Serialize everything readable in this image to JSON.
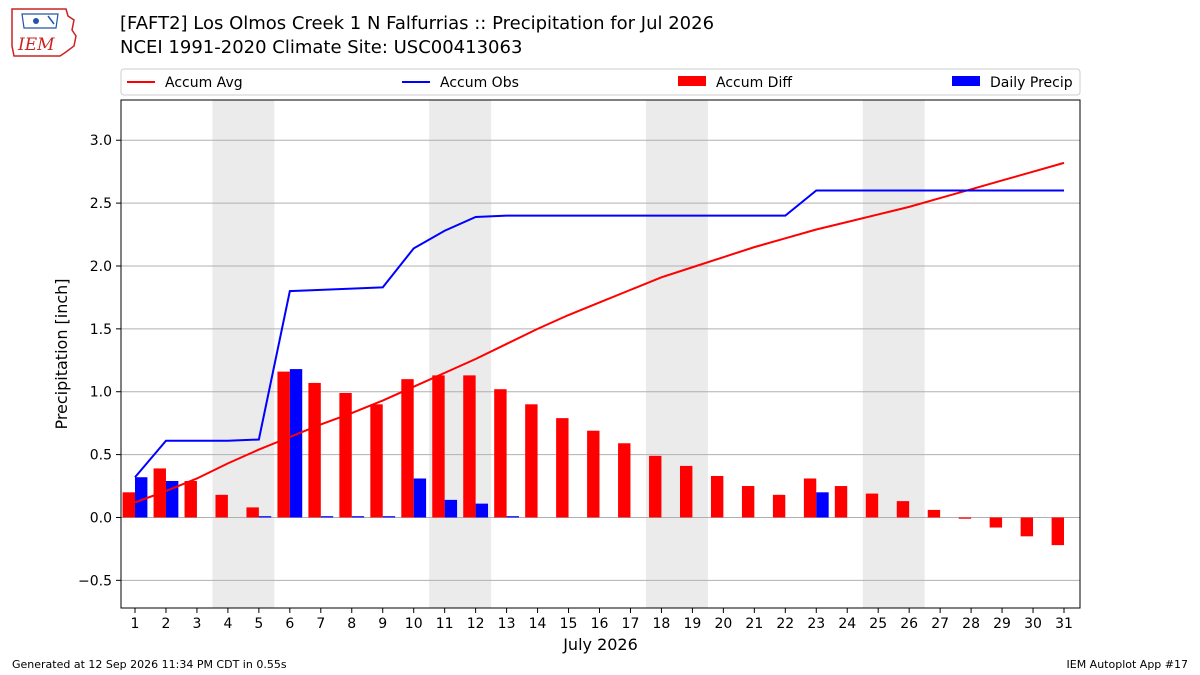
{
  "header": {
    "title_line1": "[FAFT2] Los Olmos Creek 1 N Falfurrias :: Precipitation for Jul 2026",
    "title_line2": "NCEI 1991-2020 Climate Site: USC00413063",
    "logo_text": "IEM"
  },
  "footer": {
    "left": "Generated at 12 Sep 2026 11:34 PM CDT in 0.55s",
    "right": "IEM Autoplot App #17"
  },
  "chart_data": {
    "type": "bar",
    "xlabel": "July 2026",
    "ylabel": "Precipitation [inch]",
    "ylim": [
      -0.72,
      3.32
    ],
    "yticks": [
      -0.5,
      0.0,
      0.5,
      1.0,
      1.5,
      2.0,
      2.5,
      3.0
    ],
    "ytick_labels": [
      "−0.5",
      "0.0",
      "0.5",
      "1.0",
      "1.5",
      "2.0",
      "2.5",
      "3.0"
    ],
    "grid": true,
    "legend_position": "top",
    "shaded_weekends": [
      [
        4,
        5
      ],
      [
        11,
        12
      ],
      [
        18,
        19
      ],
      [
        25,
        26
      ]
    ],
    "categories": [
      "1",
      "2",
      "3",
      "4",
      "5",
      "6",
      "7",
      "8",
      "9",
      "10",
      "11",
      "12",
      "13",
      "14",
      "15",
      "16",
      "17",
      "18",
      "19",
      "20",
      "21",
      "22",
      "23",
      "24",
      "25",
      "26",
      "27",
      "28",
      "29",
      "30",
      "31"
    ],
    "series": [
      {
        "name": "Accum Avg",
        "kind": "line",
        "color": "#ff0000",
        "values": [
          0.12,
          0.21,
          0.31,
          0.43,
          0.54,
          0.64,
          0.74,
          0.83,
          0.93,
          1.04,
          1.15,
          1.26,
          1.38,
          1.5,
          1.61,
          1.71,
          1.81,
          1.91,
          1.99,
          2.07,
          2.15,
          2.22,
          2.29,
          2.35,
          2.41,
          2.47,
          2.54,
          2.61,
          2.68,
          2.75,
          2.82
        ]
      },
      {
        "name": "Accum Obs",
        "kind": "line",
        "color": "#0000ff",
        "values": [
          0.32,
          0.61,
          0.61,
          0.61,
          0.62,
          1.8,
          1.81,
          1.82,
          1.83,
          2.14,
          2.28,
          2.39,
          2.4,
          2.4,
          2.4,
          2.4,
          2.4,
          2.4,
          2.4,
          2.4,
          2.4,
          2.4,
          2.6,
          2.6,
          2.6,
          2.6,
          2.6,
          2.6,
          2.6,
          2.6,
          2.6
        ]
      },
      {
        "name": "Accum Diff",
        "kind": "bar",
        "color": "#ff0000",
        "values": [
          0.2,
          0.39,
          0.29,
          0.18,
          0.08,
          1.16,
          1.07,
          0.99,
          0.9,
          1.1,
          1.13,
          1.13,
          1.02,
          0.9,
          0.79,
          0.69,
          0.59,
          0.49,
          0.41,
          0.33,
          0.25,
          0.18,
          0.31,
          0.25,
          0.19,
          0.13,
          0.06,
          -0.01,
          -0.08,
          -0.15,
          -0.22
        ]
      },
      {
        "name": "Daily Precip",
        "kind": "bar",
        "color": "#0000ff",
        "values": [
          0.32,
          0.29,
          0.0,
          0.0,
          0.01,
          1.18,
          0.01,
          0.01,
          0.01,
          0.31,
          0.14,
          0.11,
          0.01,
          0.0,
          0.0,
          0.0,
          0.0,
          0.0,
          0.0,
          0.0,
          0.0,
          0.0,
          0.2,
          0.0,
          0.0,
          0.0,
          0.0,
          0.0,
          0.0,
          0.0,
          0.0
        ]
      }
    ]
  }
}
